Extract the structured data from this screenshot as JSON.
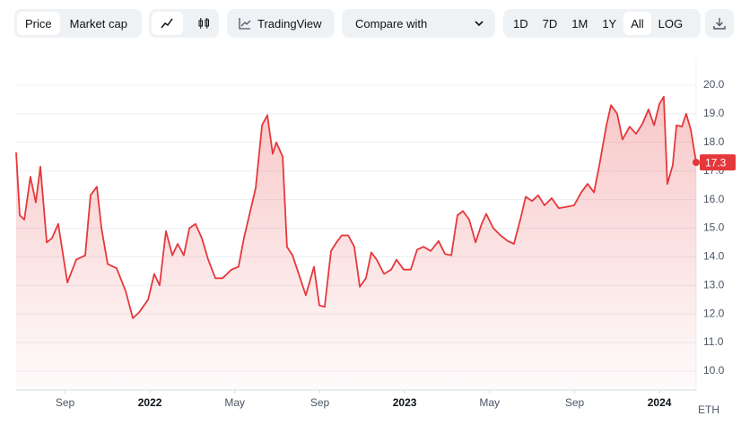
{
  "toolbar": {
    "price": "Price",
    "market_cap": "Market cap",
    "tradingview": "TradingView",
    "compare": "Compare with",
    "ranges": [
      "1D",
      "7D",
      "1M",
      "1Y",
      "All"
    ],
    "log": "LOG"
  },
  "chart_data": {
    "type": "line",
    "color": "#e5383b",
    "unit": "ETH",
    "grid": true,
    "xlim": [
      2021.475,
      2024.144
    ],
    "ylim": [
      9.34,
      20.91
    ],
    "xticks": [
      {
        "value": 2021.667,
        "label": "Sep"
      },
      2022,
      {
        "value": 2022.333,
        "label": "May"
      },
      {
        "value": 2022.667,
        "label": "Sep"
      },
      2023,
      {
        "value": 2023.333,
        "label": "May"
      },
      {
        "value": 2023.667,
        "label": "Sep"
      },
      2024
    ],
    "yticks": [
      {
        "value": 10,
        "label": "10.0"
      },
      {
        "value": 11,
        "label": "11.0"
      },
      {
        "value": 12,
        "label": "12.0"
      },
      {
        "value": 13,
        "label": "13.0"
      },
      {
        "value": 14,
        "label": "14.0"
      },
      {
        "value": 15,
        "label": "15.0"
      },
      {
        "value": 16,
        "label": "16.0"
      },
      {
        "value": 17,
        "label": "17.0"
      },
      {
        "value": 18,
        "label": "18.0"
      },
      {
        "value": 19,
        "label": "19.0"
      },
      {
        "value": 20,
        "label": "20.0"
      }
    ],
    "x": [
      2021.475,
      2021.489,
      2021.507,
      2021.531,
      2021.552,
      2021.57,
      2021.595,
      2021.616,
      2021.64,
      2021.676,
      2021.711,
      2021.746,
      2021.767,
      2021.792,
      2021.81,
      2021.834,
      2021.869,
      2021.905,
      2021.933,
      2021.957,
      2021.993,
      2022.017,
      2022.038,
      2022.063,
      2022.088,
      2022.109,
      2022.133,
      2022.155,
      2022.179,
      2022.204,
      2022.229,
      2022.257,
      2022.285,
      2022.32,
      2022.348,
      2022.369,
      2022.39,
      2022.415,
      2022.44,
      2022.461,
      2022.482,
      2022.496,
      2022.521,
      2022.538,
      2022.56,
      2022.584,
      2022.612,
      2022.644,
      2022.665,
      2022.686,
      2022.711,
      2022.732,
      2022.753,
      2022.778,
      2022.802,
      2022.824,
      2022.848,
      2022.869,
      2022.89,
      2022.919,
      2022.947,
      2022.968,
      2022.996,
      2023.024,
      2023.049,
      2023.074,
      2023.102,
      2023.133,
      2023.158,
      2023.183,
      2023.207,
      2023.229,
      2023.253,
      2023.278,
      2023.302,
      2023.32,
      2023.348,
      2023.376,
      2023.405,
      2023.429,
      2023.454,
      2023.475,
      2023.5,
      2023.524,
      2023.549,
      2023.577,
      2023.605,
      2023.637,
      2023.665,
      2023.693,
      2023.718,
      2023.743,
      2023.764,
      2023.792,
      2023.81,
      2023.834,
      2023.855,
      2023.883,
      2023.908,
      2023.933,
      2023.957,
      2023.979,
      2024.0,
      2024.017,
      2024.031,
      2024.052,
      2024.067,
      2024.088,
      2024.105,
      2024.123,
      2024.144
    ],
    "values": [
      17.65,
      15.45,
      15.3,
      16.8,
      15.9,
      17.15,
      14.5,
      14.65,
      15.15,
      13.1,
      13.9,
      14.05,
      16.15,
      16.45,
      15.0,
      13.75,
      13.6,
      12.8,
      11.85,
      12.05,
      12.5,
      13.4,
      13.0,
      14.9,
      14.05,
      14.45,
      14.05,
      15.0,
      15.15,
      14.65,
      13.9,
      13.25,
      13.25,
      13.55,
      13.65,
      14.65,
      15.45,
      16.4,
      18.6,
      18.95,
      17.6,
      18.0,
      17.5,
      14.35,
      14.05,
      13.4,
      12.65,
      13.65,
      12.3,
      12.25,
      14.2,
      14.5,
      14.75,
      14.75,
      14.35,
      12.95,
      13.25,
      14.15,
      13.9,
      13.4,
      13.55,
      13.9,
      13.55,
      13.55,
      14.25,
      14.35,
      14.2,
      14.55,
      14.1,
      14.05,
      15.45,
      15.6,
      15.3,
      14.5,
      15.15,
      15.5,
      15.0,
      14.75,
      14.55,
      14.45,
      15.3,
      16.1,
      15.95,
      16.15,
      15.8,
      16.05,
      15.7,
      15.75,
      15.8,
      16.25,
      16.55,
      16.25,
      17.2,
      18.6,
      19.3,
      19.0,
      18.1,
      18.55,
      18.3,
      18.65,
      19.15,
      18.6,
      19.35,
      19.6,
      16.55,
      17.2,
      18.6,
      18.55,
      19.0,
      18.45,
      17.3
    ]
  }
}
